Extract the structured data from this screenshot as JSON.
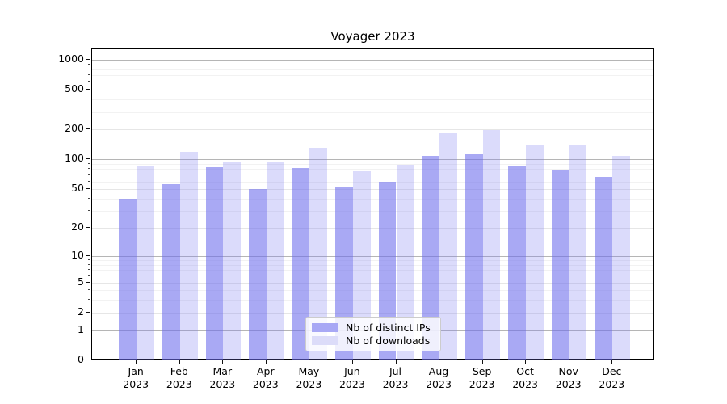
{
  "chart_data": {
    "type": "bar",
    "title": "Voyager 2023",
    "yscale": "symlog ln(1+x)",
    "ylim": [
      0,
      1270
    ],
    "y_ticks": [
      0,
      1,
      2,
      5,
      10,
      20,
      50,
      100,
      200,
      500,
      1000
    ],
    "y_decade_ticks": [
      1,
      10,
      100,
      1000
    ],
    "grid": true,
    "legend_position": "lower center",
    "months": [
      "Jan",
      "Feb",
      "Mar",
      "Apr",
      "May",
      "Jun",
      "Jul",
      "Aug",
      "Sep",
      "Oct",
      "Nov",
      "Dec"
    ],
    "year": "2023",
    "categories": [
      "Jan 2023",
      "Feb 2023",
      "Mar 2023",
      "Apr 2023",
      "May 2023",
      "Jun 2023",
      "Jul 2023",
      "Aug 2023",
      "Sep 2023",
      "Oct 2023",
      "Nov 2023",
      "Dec 2023"
    ],
    "series": [
      {
        "name": "Nb of distinct IPs",
        "color": "#6a6aec",
        "alpha": 0.58,
        "rendered_color": "#a8a8f5",
        "values": [
          40,
          56,
          83,
          50,
          82,
          52,
          60,
          108,
          112,
          85,
          78,
          67
        ]
      },
      {
        "name": "Nb of downloads",
        "color": "#7a7af0",
        "alpha": 0.27,
        "rendered_color": "#dcdcf9",
        "values": [
          85,
          120,
          95,
          93,
          130,
          76,
          88,
          185,
          198,
          140,
          140,
          108
        ]
      }
    ]
  }
}
